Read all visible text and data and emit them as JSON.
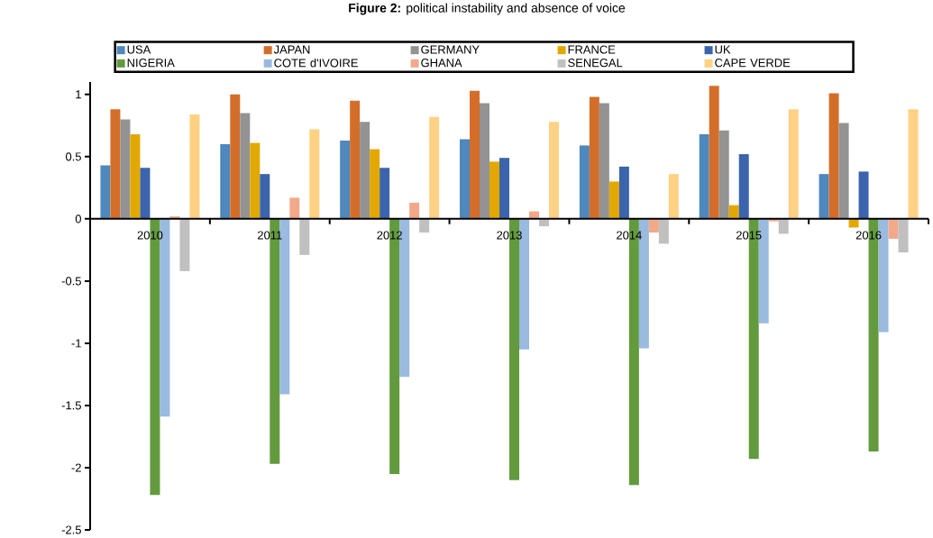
{
  "chart_data": {
    "type": "bar",
    "title": "**Figure 2:** political instability and absence of voice",
    "categories": [
      "2010",
      "2011",
      "2012",
      "2013",
      "2014",
      "2015",
      "2016"
    ],
    "series": [
      {
        "name": "USA",
        "color": "#4e88bd",
        "values": [
          0.43,
          0.6,
          0.63,
          0.64,
          0.59,
          0.68,
          0.36
        ]
      },
      {
        "name": "JAPAN",
        "color": "#d36e2a",
        "values": [
          0.88,
          1.0,
          0.95,
          1.03,
          0.98,
          1.07,
          1.01
        ]
      },
      {
        "name": "GERMANY",
        "color": "#939393",
        "values": [
          0.8,
          0.85,
          0.78,
          0.93,
          0.93,
          0.71,
          0.77
        ]
      },
      {
        "name": "FRANCE",
        "color": "#e2a800",
        "values": [
          0.68,
          0.61,
          0.56,
          0.46,
          0.3,
          0.11,
          -0.07
        ]
      },
      {
        "name": "UK",
        "color": "#3c64ac",
        "values": [
          0.41,
          0.36,
          0.41,
          0.49,
          0.42,
          0.52,
          0.38
        ]
      },
      {
        "name": "NIGERIA",
        "color": "#639a3e",
        "values": [
          -2.22,
          -1.97,
          -2.05,
          -2.1,
          -2.14,
          -1.93,
          -1.87
        ]
      },
      {
        "name": "COTE d'IVOIRE",
        "color": "#9abae0",
        "values": [
          -1.59,
          -1.41,
          -1.27,
          -1.05,
          -1.04,
          -0.84,
          -0.91
        ]
      },
      {
        "name": "GHANA",
        "color": "#f2a98a",
        "values": [
          0.02,
          0.17,
          0.13,
          0.06,
          -0.11,
          -0.02,
          -0.16
        ]
      },
      {
        "name": "SENEGAL",
        "color": "#c0c0c0",
        "values": [
          -0.42,
          -0.29,
          -0.11,
          -0.06,
          -0.2,
          -0.12,
          -0.27
        ]
      },
      {
        "name": "CAPE VERDE",
        "color": "#ffd184",
        "values": [
          0.84,
          0.72,
          0.82,
          0.78,
          0.36,
          0.88,
          0.88
        ]
      }
    ],
    "ylim": [
      -2.5,
      1.1
    ],
    "yticks": [
      -2.5,
      -2,
      -1.5,
      -1,
      -0.5,
      0,
      0.5,
      1
    ],
    "legend": "top"
  }
}
